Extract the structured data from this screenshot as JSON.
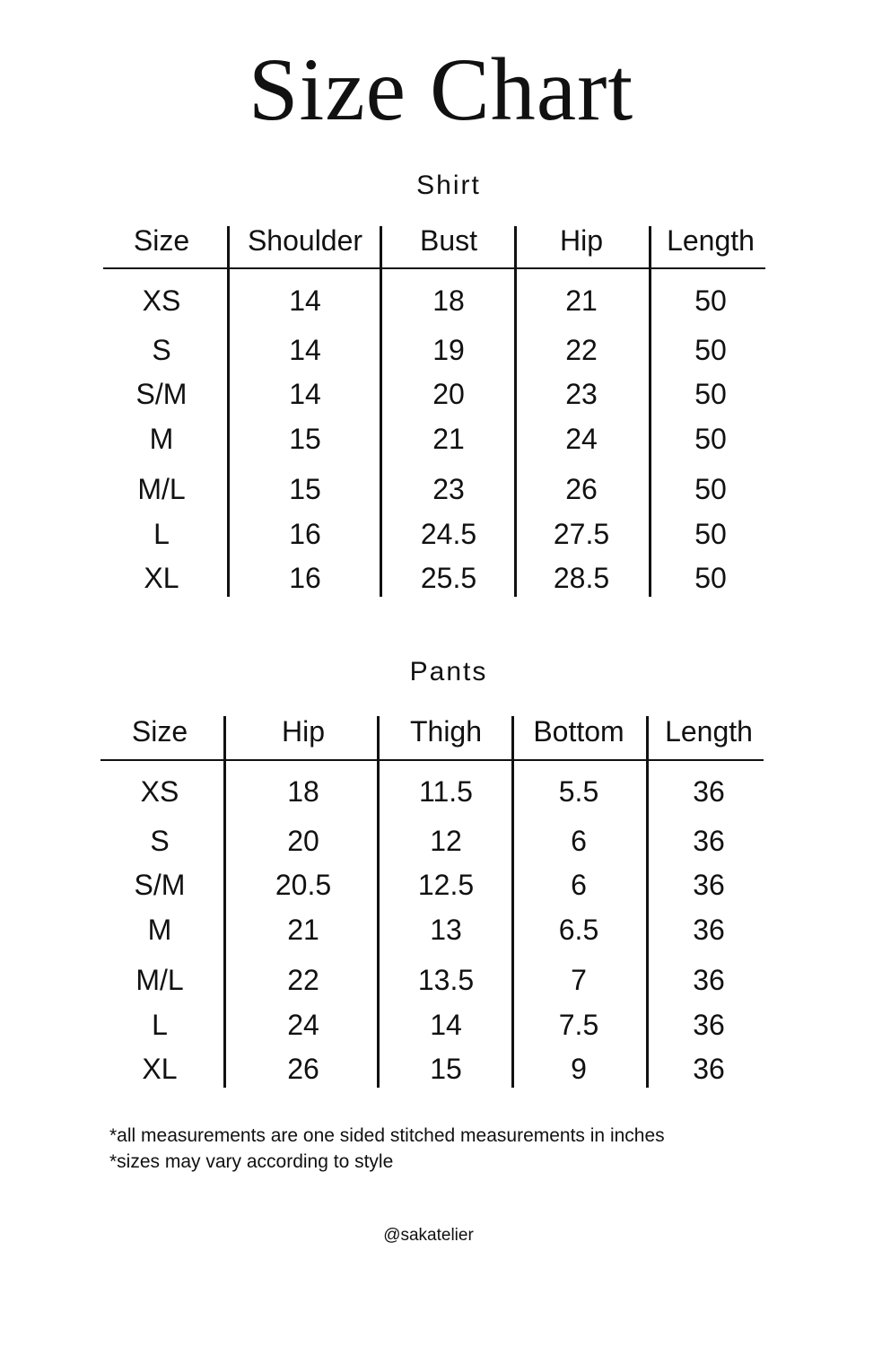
{
  "title": "Size Chart",
  "tables": [
    {
      "name": "Shirt",
      "headers": [
        "Size",
        "Shoulder",
        "Bust",
        "Hip",
        "Length"
      ],
      "rows": [
        [
          "XS",
          "14",
          "18",
          "21",
          "50"
        ],
        [
          "S",
          "14",
          "19",
          "22",
          "50"
        ],
        [
          "S/M",
          "14",
          "20",
          "23",
          "50"
        ],
        [
          "M",
          "15",
          "21",
          "24",
          "50"
        ],
        [
          "M/L",
          "15",
          "23",
          "26",
          "50"
        ],
        [
          "L",
          "16",
          "24.5",
          "27.5",
          "50"
        ],
        [
          "XL",
          "16",
          "25.5",
          "28.5",
          "50"
        ]
      ]
    },
    {
      "name": "Pants",
      "headers": [
        "Size",
        "Hip",
        "Thigh",
        "Bottom",
        "Length"
      ],
      "rows": [
        [
          "XS",
          "18",
          "11.5",
          "5.5",
          "36"
        ],
        [
          "S",
          "20",
          "12",
          "6",
          "36"
        ],
        [
          "S/M",
          "20.5",
          "12.5",
          "6",
          "36"
        ],
        [
          "M",
          "21",
          "13",
          "6.5",
          "36"
        ],
        [
          "M/L",
          "22",
          "13.5",
          "7",
          "36"
        ],
        [
          "L",
          "24",
          "14",
          "7.5",
          "36"
        ],
        [
          "XL",
          "26",
          "15",
          "9",
          "36"
        ]
      ]
    }
  ],
  "notes": [
    "*all measurements are one sided stitched measurements in inches",
    "*sizes may vary according to style"
  ],
  "handle": "@sakatelier",
  "colors": {
    "text": "#111111",
    "background": "#ffffff"
  }
}
